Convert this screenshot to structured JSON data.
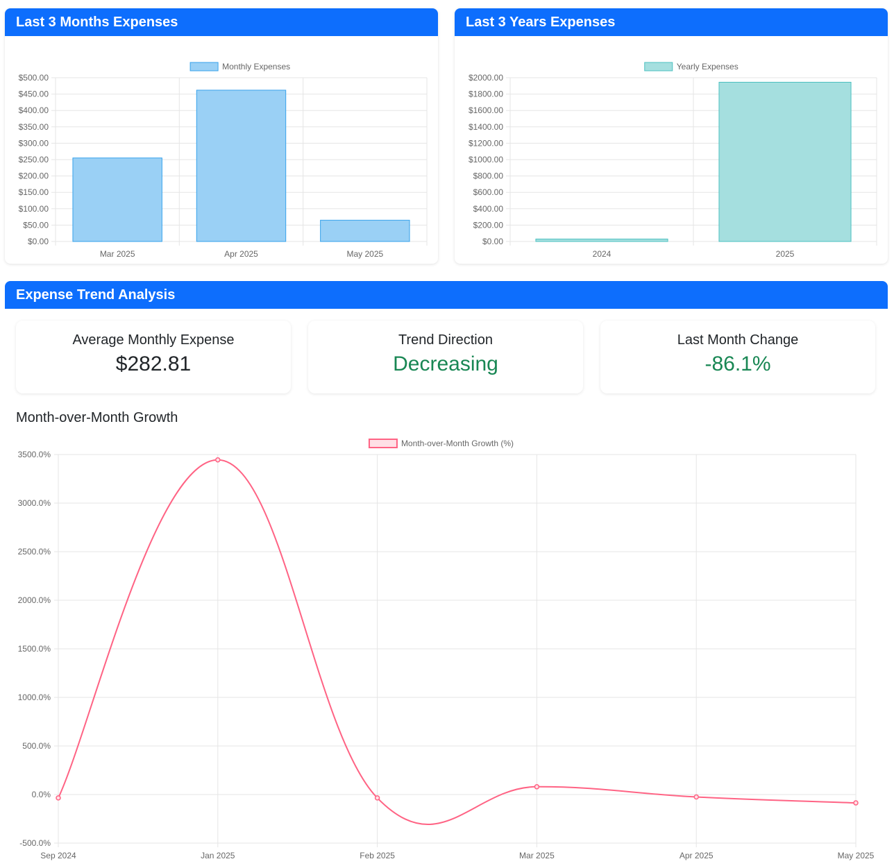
{
  "monthly_card": {
    "title": "Last 3 Months Expenses",
    "legend": "Monthly Expenses",
    "color_fill": "#9ad0f5",
    "color_border": "#36a2eb"
  },
  "yearly_card": {
    "title": "Last 3 Years Expenses",
    "legend": "Yearly Expenses",
    "color_fill": "#a5dfdf",
    "color_border": "#4bc0c0"
  },
  "trend": {
    "title": "Expense Trend Analysis",
    "stats": [
      {
        "label": "Average Monthly Expense",
        "value": "$282.81",
        "color": "#212529"
      },
      {
        "label": "Trend Direction",
        "value": "Decreasing",
        "color": "#198754"
      },
      {
        "label": "Last Month Change",
        "value": "-86.1%",
        "color": "#198754"
      }
    ],
    "growth_title": "Month-over-Month Growth",
    "legend": "Month-over-Month Growth (%)",
    "color_line": "#ff6384",
    "color_fill": "#ffe0e6"
  },
  "chart_data": [
    {
      "type": "bar",
      "categories": [
        "Mar 2025",
        "Apr 2025",
        "May 2025"
      ],
      "series": [
        {
          "name": "Monthly Expenses",
          "values": [
            255,
            462,
            65
          ]
        }
      ],
      "ylim": [
        0,
        500
      ],
      "yticks": [
        "$500.00",
        "$450.00",
        "$400.00",
        "$350.00",
        "$300.00",
        "$250.00",
        "$200.00",
        "$150.00",
        "$100.00",
        "$50.00",
        "$0.00"
      ],
      "legend": "top",
      "grid": true
    },
    {
      "type": "bar",
      "categories": [
        "2024",
        "2025"
      ],
      "series": [
        {
          "name": "Yearly Expenses",
          "values": [
            30,
            1945
          ]
        }
      ],
      "ylim": [
        0,
        2000
      ],
      "yticks": [
        "$2000.00",
        "$1800.00",
        "$1600.00",
        "$1400.00",
        "$1200.00",
        "$1000.00",
        "$800.00",
        "$600.00",
        "$400.00",
        "$200.00",
        "$0.00"
      ],
      "legend": "top",
      "grid": true
    },
    {
      "type": "line",
      "categories": [
        "Sep 2024",
        "Jan 2025",
        "Feb 2025",
        "Mar 2025",
        "Apr 2025",
        "May 2025"
      ],
      "series": [
        {
          "name": "Month-over-Month Growth (%)",
          "values": [
            -35,
            3445,
            -35,
            80,
            -25,
            -86.1
          ]
        }
      ],
      "ylim": [
        -500,
        3500
      ],
      "yticks": [
        "3500.0%",
        "3000.0%",
        "2500.0%",
        "2000.0%",
        "1500.0%",
        "1000.0%",
        "500.0%",
        "0.0%",
        "-500.0%"
      ],
      "legend": "top",
      "grid": true
    }
  ]
}
